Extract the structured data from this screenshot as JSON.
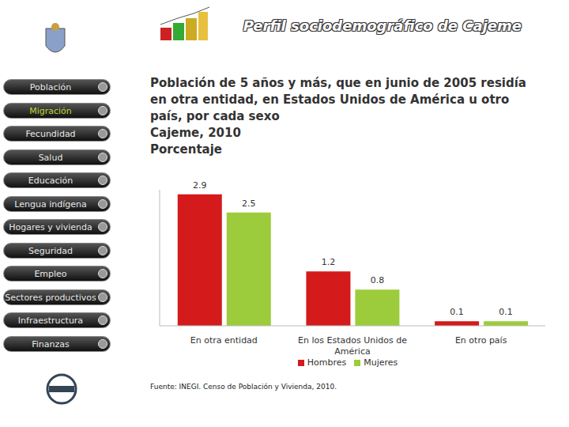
{
  "header": "Perfil sociodemográfico de Cajeme",
  "menu": [
    "Población",
    "Migración",
    "Fecundidad",
    "Salud",
    "Educación",
    "Lengua indígena",
    "Hogares y vivienda",
    "Seguridad",
    "Empleo",
    "Sectores productivos",
    "Infraestructura",
    "Finanzas"
  ],
  "active_menu": 1,
  "chart_data": {
    "type": "bar",
    "title": "Población de 5 años y más, que en junio de 2005 residía en otra entidad, en Estados Unidos de América u otro país, por cada sexo",
    "subtitle": "Cajeme, 2010",
    "ylabel": "Porcentaje",
    "categories": [
      "En otra entidad",
      "En los Estados Unidos de América",
      "En otro país"
    ],
    "series": [
      {
        "name": "Hombres",
        "color": "#d41a1a",
        "values": [
          2.9,
          1.2,
          0.1
        ]
      },
      {
        "name": "Mujeres",
        "color": "#9ccc3c",
        "values": [
          2.5,
          0.8,
          0.1
        ]
      }
    ],
    "ylim": [
      0,
      3
    ],
    "data_labels": true,
    "tick_labels": "x",
    "legend": "bottom",
    "source": "Fuente: INEGI. Censo de Población y Vivienda, 2010."
  }
}
